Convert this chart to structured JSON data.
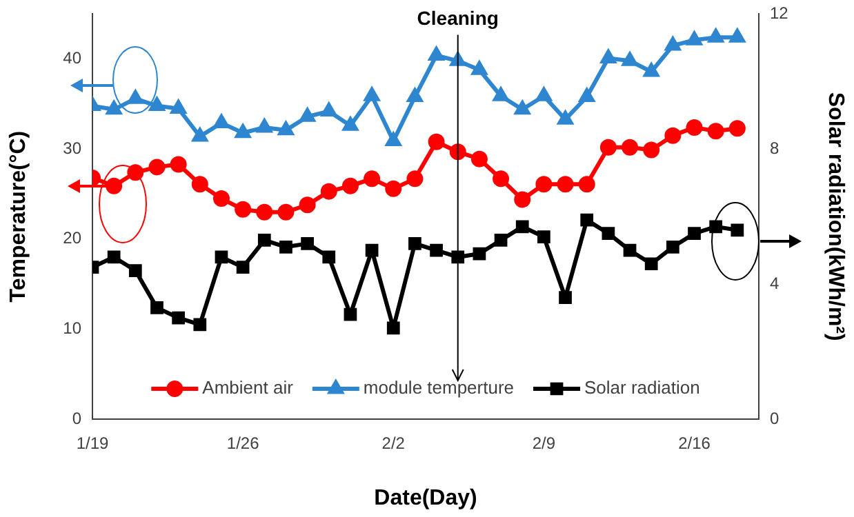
{
  "chart_data": {
    "type": "line",
    "xlabel": "Date(Day)",
    "ylabel": "Temperature(°C)",
    "y2label": "Solar radiation(kWh/m²)",
    "x": [
      "--01-19",
      "--01-20",
      "--01-21",
      "--01-22",
      "--01-23",
      "--01-24",
      "--01-25",
      "--01-26",
      "--01-27",
      "--01-28",
      "--01-29",
      "--01-30",
      "--01-31",
      "--02-01",
      "--02-02",
      "--02-03",
      "--02-04",
      "--02-05",
      "--02-06",
      "--02-07",
      "--02-08",
      "--02-09",
      "--02-10",
      "--02-11",
      "--02-12",
      "--02-13",
      "--02-14",
      "--02-15",
      "--02-16",
      "--02-17",
      "--02-18"
    ],
    "series": [
      {
        "name": "Ambient air",
        "color": "#ff0000",
        "marker": "circle",
        "values": [
          26.8,
          25.9,
          27.4,
          28.0,
          28.3,
          26.1,
          24.5,
          23.3,
          23.0,
          23.0,
          23.8,
          25.3,
          25.9,
          26.7,
          25.6,
          26.7,
          30.8,
          29.7,
          28.9,
          26.7,
          24.4,
          26.1,
          26.1,
          26.1,
          30.2,
          30.2,
          29.9,
          31.5,
          32.4,
          32.0,
          32.3
        ]
      },
      {
        "name": "module temperture",
        "color": "#2e86d0",
        "marker": "triangle",
        "values": [
          34.8,
          34.4,
          35.6,
          34.8,
          34.5,
          31.4,
          32.9,
          31.8,
          32.4,
          32.1,
          33.6,
          34.2,
          32.6,
          35.9,
          30.9,
          35.8,
          40.4,
          39.8,
          38.8,
          35.9,
          34.4,
          35.9,
          33.3,
          35.8,
          40.1,
          39.8,
          38.6,
          41.5,
          42.1,
          42.4,
          42.4
        ]
      },
      {
        "name": "Solar radiation",
        "color": "#000000",
        "marker": "square",
        "axis": "y2",
        "values": [
          4.5,
          4.8,
          4.4,
          3.3,
          3.0,
          2.8,
          4.8,
          4.5,
          5.3,
          5.1,
          5.2,
          4.8,
          3.1,
          5.0,
          2.7,
          5.2,
          5.0,
          4.8,
          4.9,
          5.3,
          5.7,
          5.4,
          3.6,
          5.9,
          5.5,
          5.0,
          4.6,
          5.1,
          5.5,
          5.7,
          5.6
        ]
      }
    ],
    "xlim": [
      "--01-19",
      "--02-19"
    ],
    "xticks": [
      {
        "value": "--01-19",
        "label": "1/19"
      },
      {
        "value": "--01-26",
        "label": "1/26"
      },
      {
        "value": "--02-02",
        "label": "2/2"
      },
      {
        "value": "--02-09",
        "label": "2/9"
      },
      {
        "value": "--02-16",
        "label": "2/16"
      }
    ],
    "ylim": [
      0,
      45
    ],
    "yticks": [
      0,
      10,
      20,
      30,
      40
    ],
    "y2lim": [
      0,
      12
    ],
    "y2ticks": [
      0,
      4,
      8,
      12
    ],
    "ref_lines": [
      {
        "axis": "x",
        "value": "--02-05",
        "label": "Cleaning",
        "color": "#000000"
      }
    ],
    "legend": "bottom",
    "line_style": "solid",
    "grid": false
  }
}
